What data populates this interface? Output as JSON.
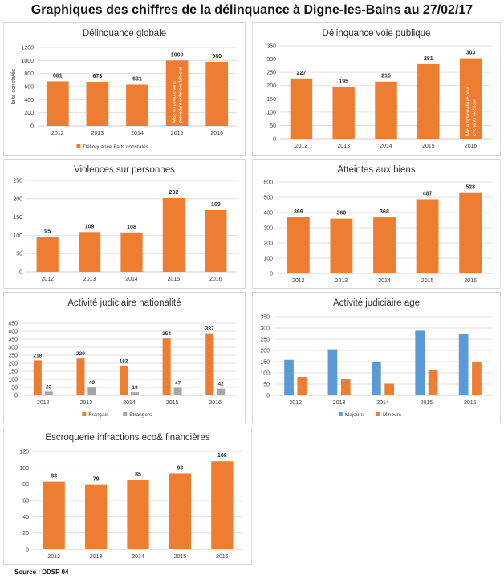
{
  "page": {
    "title": "Graphiques des chiffres de la délinquance à Digne-les-Bains au 27/02/17",
    "source": "Source : DDSP 04"
  },
  "colors": {
    "orange": "#ED7D31",
    "grey": "#A5A5A5",
    "blue": "#5B9BD5",
    "grid": "#D9D9D9",
    "axis": "#BFBFBF",
    "text": "#404040"
  },
  "chart_data": [
    {
      "id": "delinquance-globale",
      "type": "bar",
      "title": "Délinquance globale",
      "ylabel": "faits constatés",
      "categories": [
        "2012",
        "2013",
        "2014",
        "2015",
        "2016"
      ],
      "series": [
        {
          "name": "Délinquance Faits constatés",
          "values": [
            681,
            673,
            631,
            1000,
            980
          ],
          "color": "#ED7D31"
        }
      ],
      "data_labels": [
        "681",
        "673",
        "631",
        "1000",
        "980"
      ],
      "ylim": [
        0,
        1200
      ],
      "yticks": [
        0,
        200,
        400,
        600,
        800,
        1000,
        1200
      ],
      "grid": true,
      "legend": "bottom",
      "annotation": {
        "category": "2015",
        "text": "Mise en compte sans\nprecedent violences faites al"
      }
    },
    {
      "id": "delinquance-voie-publique",
      "type": "bar",
      "title": "Délinquance voie publique",
      "categories": [
        "2012",
        "2013",
        "2014",
        "2015",
        "2016"
      ],
      "series": [
        {
          "name": "",
          "values": [
            227,
            195,
            215,
            281,
            303
          ],
          "color": "#ED7D31"
        }
      ],
      "data_labels": [
        "227",
        "195",
        "215",
        "281",
        "303"
      ],
      "ylim": [
        0,
        350
      ],
      "yticks": [
        0,
        50,
        100,
        150,
        200,
        250,
        300,
        350
      ],
      "grid": true,
      "annotation": {
        "category": "2016",
        "text": "Mieux systematique pour\nevenants extérieur"
      }
    },
    {
      "id": "violences-sur-personnes",
      "type": "bar",
      "title": "Violences sur personnes",
      "categories": [
        "2012",
        "2013",
        "2014",
        "2015",
        "2016"
      ],
      "series": [
        {
          "name": "",
          "values": [
            95,
            109,
            108,
            202,
            169
          ],
          "color": "#ED7D31"
        }
      ],
      "data_labels": [
        "95",
        "109",
        "108",
        "202",
        "169"
      ],
      "ylim": [
        0,
        250
      ],
      "yticks": [
        0,
        50,
        100,
        150,
        200,
        250
      ],
      "grid": true
    },
    {
      "id": "atteintes-aux-biens",
      "type": "bar",
      "title": "Atteintes aux biens",
      "categories": [
        "2012",
        "2013",
        "2014",
        "2015",
        "2016"
      ],
      "series": [
        {
          "name": "",
          "values": [
            369,
            360,
            368,
            487,
            528
          ],
          "color": "#ED7D31"
        }
      ],
      "data_labels": [
        "369",
        "360",
        "368",
        "487",
        "528"
      ],
      "ylim": [
        0,
        600
      ],
      "yticks": [
        0,
        100,
        200,
        300,
        400,
        500,
        600
      ],
      "grid": true
    },
    {
      "id": "activite-judiciaire-nationalite",
      "type": "bar",
      "title": "Activité judiciaire nationalité",
      "categories": [
        "2012",
        "2013",
        "2014",
        "2015",
        "2016"
      ],
      "series": [
        {
          "name": "Français",
          "values": [
            218,
            229,
            182,
            354,
            387
          ],
          "color": "#ED7D31",
          "data_labels": [
            "218",
            "229",
            "182",
            "354",
            "387"
          ]
        },
        {
          "name": "Etrangers",
          "values": [
            23,
            49,
            19,
            47,
            42
          ],
          "color": "#A5A5A5",
          "data_labels": [
            "23",
            "49",
            "19",
            "47",
            "42"
          ]
        }
      ],
      "ylim": [
        0,
        450
      ],
      "yticks": [
        0,
        50,
        100,
        150,
        200,
        250,
        300,
        350,
        400,
        450
      ],
      "grid": true,
      "legend": "bottom"
    },
    {
      "id": "activite-judiciaire-age",
      "type": "bar",
      "title": "Activité judiciaire age",
      "categories": [
        "2012",
        "2013",
        "2014",
        "2015",
        "2016"
      ],
      "series": [
        {
          "name": "Majeurs",
          "values": [
            158,
            205,
            148,
            288,
            273
          ],
          "color": "#5B9BD5"
        },
        {
          "name": "Mineurs",
          "values": [
            82,
            72,
            52,
            112,
            150
          ],
          "color": "#ED7D31"
        }
      ],
      "ylim": [
        0,
        350
      ],
      "yticks": [
        0,
        50,
        100,
        150,
        200,
        250,
        300,
        350
      ],
      "grid": true,
      "legend": "bottom"
    },
    {
      "id": "escroquerie",
      "type": "bar",
      "title": "Escroquerie infractions eco& financières",
      "categories": [
        "2012",
        "2013",
        "2014",
        "2015",
        "2016"
      ],
      "series": [
        {
          "name": "",
          "values": [
            83,
            79,
            85,
            93,
            108
          ],
          "color": "#ED7D31"
        }
      ],
      "data_labels": [
        "83",
        "79",
        "85",
        "93",
        "108"
      ],
      "ylim": [
        0,
        120
      ],
      "yticks": [
        0,
        20,
        40,
        60,
        80,
        100,
        120
      ],
      "grid": true
    }
  ]
}
